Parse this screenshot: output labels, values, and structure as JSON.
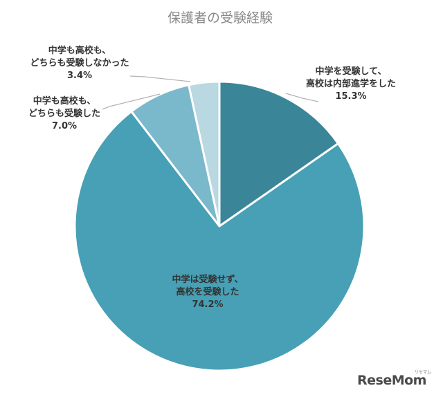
{
  "chart_data": {
    "type": "pie",
    "title": "保護者の受験経験",
    "start_angle_deg": 0,
    "direction": "clockwise",
    "legend": "none",
    "slices": [
      {
        "label": [
          "中学を受験して、",
          "高校は内部進学をした"
        ],
        "value": 15.3,
        "value_label": "15.3%",
        "color": "#3b8599"
      },
      {
        "label": [
          "中学は受験せず、",
          "高校を受験した"
        ],
        "value": 74.2,
        "value_label": "74.2%",
        "color": "#47a0b5"
      },
      {
        "label": [
          "中学も高校も、",
          "どちらも受験した"
        ],
        "value": 7.0,
        "value_label": "7.0%",
        "color": "#7ab8cb"
      },
      {
        "label": [
          "中学も高校も、",
          "どちらも受験しなかった"
        ],
        "value": 3.4,
        "value_label": "3.4%",
        "color": "#b9d8e2"
      }
    ]
  },
  "watermark": {
    "logo": "ReseMom",
    "sub": "リセマム"
  }
}
